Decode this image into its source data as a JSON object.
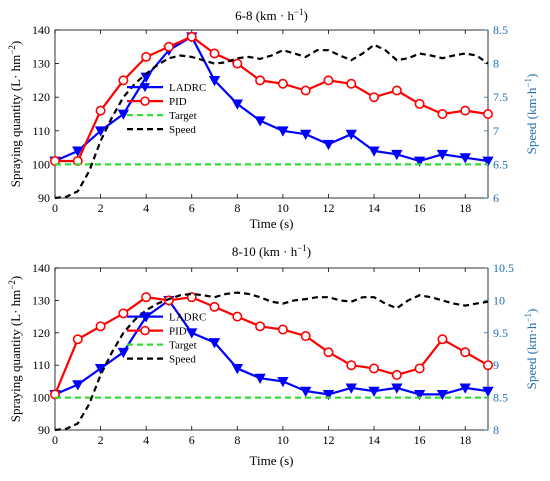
{
  "chart_data": [
    {
      "type": "line",
      "title": "6-8 (km · h",
      "title_sup": "−1",
      "title_close": ")",
      "xlabel": "Time (s)",
      "ylabel": "Spraying quantity (L· hm",
      "ylabel_sup": "−2",
      "ylabel_close": ")",
      "y2label": "Speed (km·h",
      "y2label_sup": "−1",
      "y2label_close": ")",
      "xlim": [
        0,
        19
      ],
      "ylim": [
        90,
        140
      ],
      "y2lim": [
        6,
        8.5
      ],
      "xticks": [
        "0",
        "2",
        "4",
        "6",
        "8",
        "10",
        "12",
        "14",
        "16",
        "18"
      ],
      "yticks": [
        "90",
        "100",
        "110",
        "120",
        "130",
        "140"
      ],
      "y2ticks": [
        "6",
        "6.5",
        "7",
        "7.5",
        "8",
        "8.5"
      ],
      "legend_position": "center-left",
      "series": [
        {
          "name": "LADRC",
          "color": "#0000ff",
          "marker": "triangle-down",
          "axis": "left",
          "x": [
            0,
            1,
            2,
            3,
            4,
            5,
            6,
            7,
            8,
            9,
            10,
            11,
            12,
            13,
            14,
            15,
            16,
            17,
            18,
            19
          ],
          "values": [
            101,
            104,
            110,
            115,
            126,
            134,
            138,
            125,
            118,
            113,
            110,
            109,
            106,
            109,
            104,
            103,
            101,
            103,
            102,
            101
          ]
        },
        {
          "name": "PID",
          "color": "#ff0000",
          "marker": "circle",
          "axis": "left",
          "x": [
            0,
            1,
            2,
            3,
            4,
            5,
            6,
            7,
            8,
            9,
            10,
            11,
            12,
            13,
            14,
            15,
            16,
            17,
            18,
            19
          ],
          "values": [
            101,
            101,
            116,
            125,
            132,
            135,
            138,
            133,
            130,
            125,
            124,
            122,
            125,
            124,
            120,
            122,
            118,
            115,
            116,
            115
          ]
        },
        {
          "name": "Target",
          "color": "#33dd33",
          "dash": "green",
          "axis": "left",
          "x": [
            0,
            19
          ],
          "values": [
            100,
            100
          ]
        },
        {
          "name": "Speed",
          "color": "#000000",
          "dash": "black",
          "axis": "right",
          "x": [
            0,
            0.5,
            1,
            1.5,
            2,
            2.5,
            3,
            3.5,
            4,
            4.5,
            5,
            5.5,
            6,
            6.5,
            7,
            7.5,
            8,
            8.5,
            9,
            9.5,
            10,
            10.5,
            11,
            11.5,
            12,
            12.5,
            13,
            13.5,
            14,
            14.5,
            15,
            15.5,
            16,
            16.5,
            17,
            17.5,
            18,
            18.5,
            19
          ],
          "values": [
            6.0,
            6.02,
            6.1,
            6.4,
            6.85,
            7.2,
            7.5,
            7.7,
            7.85,
            7.98,
            8.08,
            8.12,
            8.1,
            8.05,
            8.0,
            8.02,
            8.08,
            8.1,
            8.07,
            8.12,
            8.2,
            8.15,
            8.1,
            8.2,
            8.2,
            8.12,
            8.05,
            8.15,
            8.28,
            8.2,
            8.05,
            8.08,
            8.15,
            8.12,
            8.08,
            8.12,
            8.15,
            8.12,
            8.0
          ]
        }
      ]
    },
    {
      "type": "line",
      "title": "8-10 (km · h",
      "title_sup": "−1",
      "title_close": ")",
      "xlabel": "Time (s)",
      "ylabel": "Spraying quantity (L· hm",
      "ylabel_sup": "−2",
      "ylabel_close": ")",
      "y2label": "Speed (km·h",
      "y2label_sup": "−1",
      "y2label_close": ")",
      "xlim": [
        0,
        19
      ],
      "ylim": [
        90,
        140
      ],
      "y2lim": [
        8,
        10.5
      ],
      "xticks": [
        "0",
        "2",
        "4",
        "6",
        "8",
        "10",
        "12",
        "14",
        "16",
        "18"
      ],
      "yticks": [
        "90",
        "100",
        "110",
        "120",
        "130",
        "140"
      ],
      "y2ticks": [
        "8",
        "8.5",
        "9",
        "9.5",
        "10",
        "10.5"
      ],
      "legend_position": "center-left",
      "series": [
        {
          "name": "LADRC",
          "color": "#0000ff",
          "marker": "triangle-down",
          "axis": "left",
          "x": [
            0,
            1,
            2,
            3,
            4,
            5,
            6,
            7,
            8,
            9,
            10,
            11,
            12,
            13,
            14,
            15,
            16,
            17,
            18,
            19
          ],
          "values": [
            101,
            104,
            109,
            114,
            125,
            130,
            120,
            117,
            109,
            106,
            105,
            102,
            101,
            103,
            102,
            103,
            101,
            101,
            103,
            102
          ]
        },
        {
          "name": "PID",
          "color": "#ff0000",
          "marker": "circle",
          "axis": "left",
          "x": [
            0,
            1,
            2,
            3,
            4,
            5,
            6,
            7,
            8,
            9,
            10,
            11,
            12,
            13,
            14,
            15,
            16,
            17,
            18,
            19
          ],
          "values": [
            101,
            118,
            122,
            126,
            131,
            130,
            131,
            128,
            125,
            122,
            121,
            119,
            114,
            110,
            109,
            107,
            109,
            118,
            114,
            110
          ]
        },
        {
          "name": "Target",
          "color": "#33dd33",
          "dash": "green",
          "axis": "left",
          "x": [
            0,
            19
          ],
          "values": [
            100,
            100
          ]
        },
        {
          "name": "Speed",
          "color": "#000000",
          "dash": "black",
          "axis": "right",
          "x": [
            0,
            0.5,
            1,
            1.5,
            2,
            2.5,
            3,
            3.5,
            4,
            4.5,
            5,
            5.5,
            6,
            6.5,
            7,
            7.5,
            8,
            8.5,
            9,
            9.5,
            10,
            10.5,
            11,
            11.5,
            12,
            12.5,
            13,
            13.5,
            14,
            14.5,
            15,
            15.5,
            16,
            16.5,
            17,
            17.5,
            18,
            18.5,
            19
          ],
          "values": [
            8.0,
            8.02,
            8.1,
            8.4,
            8.85,
            9.2,
            9.5,
            9.7,
            9.85,
            9.95,
            10.02,
            10.08,
            10.1,
            10.08,
            10.05,
            10.1,
            10.12,
            10.1,
            10.05,
            9.98,
            9.95,
            10.0,
            10.02,
            10.05,
            10.05,
            10.0,
            9.98,
            10.05,
            10.05,
            9.95,
            9.88,
            10.0,
            10.08,
            10.05,
            10.0,
            9.95,
            9.92,
            9.95,
            9.98
          ]
        }
      ]
    }
  ]
}
